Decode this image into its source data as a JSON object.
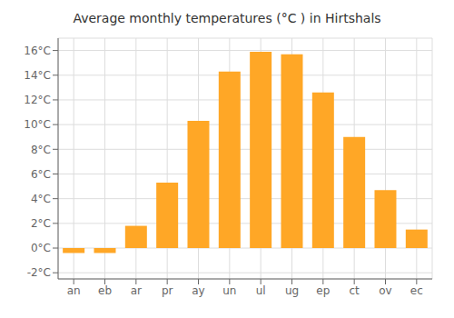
{
  "chart_data": {
    "type": "bar",
    "title": "Average monthly temperatures (°C ) in Hirtshals",
    "categories": [
      "an",
      "eb",
      "ar",
      "pr",
      "ay",
      "un",
      "ul",
      "ug",
      "ep",
      "ct",
      "ov",
      "ec"
    ],
    "values": [
      -0.4,
      -0.4,
      1.8,
      5.3,
      10.3,
      14.3,
      15.9,
      15.7,
      12.6,
      9.0,
      4.7,
      1.5
    ],
    "color": "#FFA726",
    "ylim": [
      -2.5,
      17.0
    ],
    "yticks": [
      {
        "value": -2,
        "label": "-2°C"
      },
      {
        "value": 0,
        "label": "0°C"
      },
      {
        "value": 2,
        "label": "2°C"
      },
      {
        "value": 4,
        "label": "4°C"
      },
      {
        "value": 6,
        "label": "6°C"
      },
      {
        "value": 8,
        "label": "8°C"
      },
      {
        "value": 10,
        "label": "10°C"
      },
      {
        "value": 12,
        "label": "12°C"
      },
      {
        "value": 14,
        "label": "14°C"
      },
      {
        "value": 16,
        "label": "16°C"
      }
    ],
    "grid": true
  }
}
